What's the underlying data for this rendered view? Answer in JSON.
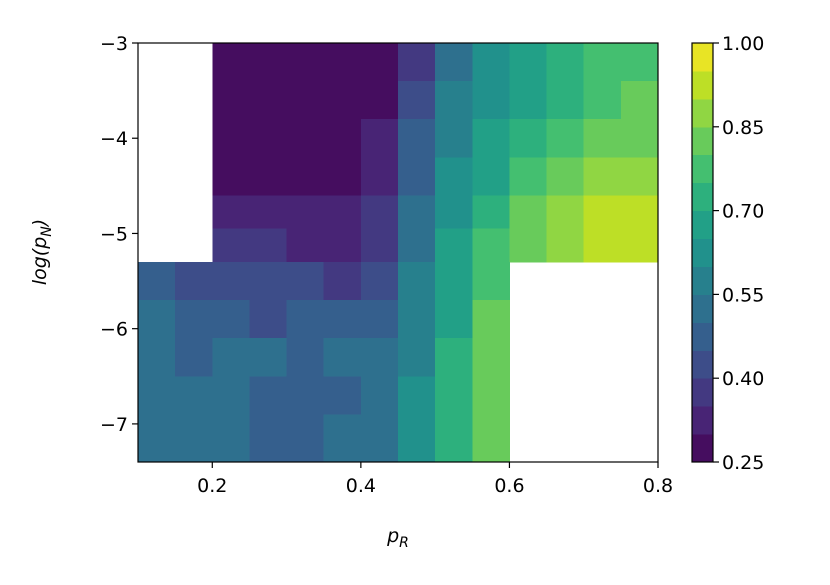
{
  "chart_data": {
    "type": "contour",
    "colormap": "viridis",
    "xlabel": {
      "base": "p",
      "sub": "R"
    },
    "ylabel": {
      "base": "log(p",
      "sub": "N",
      "tail": ")"
    },
    "x": [
      0.125,
      0.175,
      0.225,
      0.275,
      0.325,
      0.375,
      0.425,
      0.475,
      0.525,
      0.575,
      0.625,
      0.675,
      0.725,
      0.775
    ],
    "y": [
      -3.2,
      -3.6,
      -4.0,
      -4.4,
      -4.8,
      -5.1,
      -5.5,
      -5.9,
      -6.3,
      -6.7,
      -7.1
    ],
    "z": [
      [
        null,
        null,
        0.27,
        0.27,
        0.27,
        0.27,
        0.28,
        0.38,
        0.52,
        0.6,
        0.66,
        0.71,
        0.75,
        0.78
      ],
      [
        null,
        null,
        0.27,
        0.27,
        0.27,
        0.27,
        0.29,
        0.42,
        0.55,
        0.63,
        0.69,
        0.74,
        0.78,
        0.81
      ],
      [
        null,
        null,
        0.27,
        0.27,
        0.27,
        0.27,
        0.31,
        0.45,
        0.57,
        0.66,
        0.72,
        0.77,
        0.81,
        0.84
      ],
      [
        null,
        null,
        0.28,
        0.28,
        0.28,
        0.28,
        0.34,
        0.48,
        0.6,
        0.69,
        0.76,
        0.81,
        0.85,
        0.88
      ],
      [
        null,
        null,
        0.33,
        0.31,
        0.3,
        0.3,
        0.36,
        0.51,
        0.63,
        0.73,
        0.8,
        0.86,
        0.9,
        0.92
      ],
      [
        null,
        null,
        0.36,
        0.35,
        0.34,
        0.34,
        0.38,
        0.53,
        0.66,
        0.76,
        0.84,
        0.89,
        0.92,
        0.93
      ],
      [
        0.46,
        0.43,
        0.41,
        0.42,
        0.41,
        0.39,
        0.42,
        0.56,
        0.68,
        0.79,
        null,
        null,
        null,
        null
      ],
      [
        0.5,
        0.49,
        0.47,
        0.44,
        0.45,
        0.46,
        0.48,
        0.58,
        0.69,
        0.8,
        null,
        null,
        null,
        null
      ],
      [
        0.51,
        0.46,
        0.5,
        0.51,
        0.49,
        0.5,
        0.5,
        0.59,
        0.7,
        0.81,
        null,
        null,
        null,
        null
      ],
      [
        0.51,
        0.5,
        0.51,
        0.46,
        0.47,
        0.49,
        0.51,
        0.6,
        0.7,
        0.82,
        null,
        null,
        null,
        null
      ],
      [
        0.5,
        0.51,
        0.51,
        0.47,
        0.46,
        0.5,
        0.52,
        0.6,
        0.71,
        0.82,
        null,
        null,
        null,
        null
      ]
    ],
    "levels": [
      0.25,
      0.3,
      0.35,
      0.4,
      0.45,
      0.5,
      0.55,
      0.6,
      0.65,
      0.7,
      0.75,
      0.8,
      0.85,
      0.9,
      0.95,
      1.0
    ],
    "xlim": [
      0.1,
      0.8
    ],
    "ylim": [
      -7.4,
      -3
    ],
    "xticks": [
      0.2,
      0.4,
      0.6,
      0.8
    ],
    "yticks": [
      {
        "value": -3,
        "label": "−3"
      },
      {
        "value": -4,
        "label": "−4"
      },
      {
        "value": -5,
        "label": "−5"
      },
      {
        "value": -6,
        "label": "−6"
      },
      {
        "value": -7,
        "label": "−7"
      }
    ],
    "clim": [
      0.25,
      1.0
    ],
    "cticks": [
      0.25,
      {
        "value": 0.4,
        "label": "0.40"
      },
      0.55,
      {
        "value": 0.7,
        "label": "0.70"
      },
      0.85,
      {
        "value": 1.0,
        "label": "1.00"
      }
    ]
  }
}
